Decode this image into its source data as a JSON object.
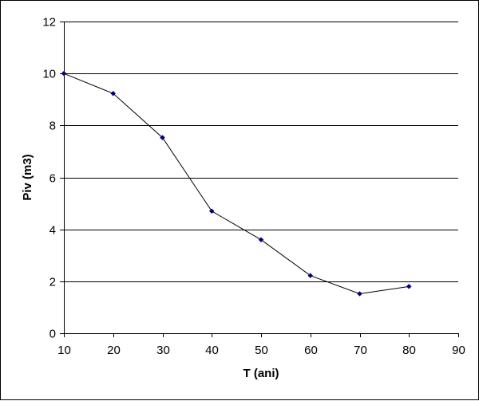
{
  "chart_data": {
    "type": "line",
    "title": "",
    "xlabel": "T (ani)",
    "ylabel": "Piv (m3)",
    "xlim": [
      10,
      90
    ],
    "ylim": [
      0,
      12
    ],
    "x_ticks": [
      10,
      20,
      30,
      40,
      50,
      60,
      70,
      80,
      90
    ],
    "y_ticks": [
      0,
      2,
      4,
      6,
      8,
      10,
      12
    ],
    "grid": "horizontal major gridlines",
    "legend": "none",
    "series": [
      {
        "color": "#000080",
        "line_color": "#000000",
        "marker": "diamond",
        "x": [
          10,
          20,
          30,
          40,
          50,
          60,
          70,
          80
        ],
        "y": [
          10.0,
          9.23,
          7.53,
          4.7,
          3.6,
          2.22,
          1.52,
          1.8
        ]
      }
    ]
  }
}
